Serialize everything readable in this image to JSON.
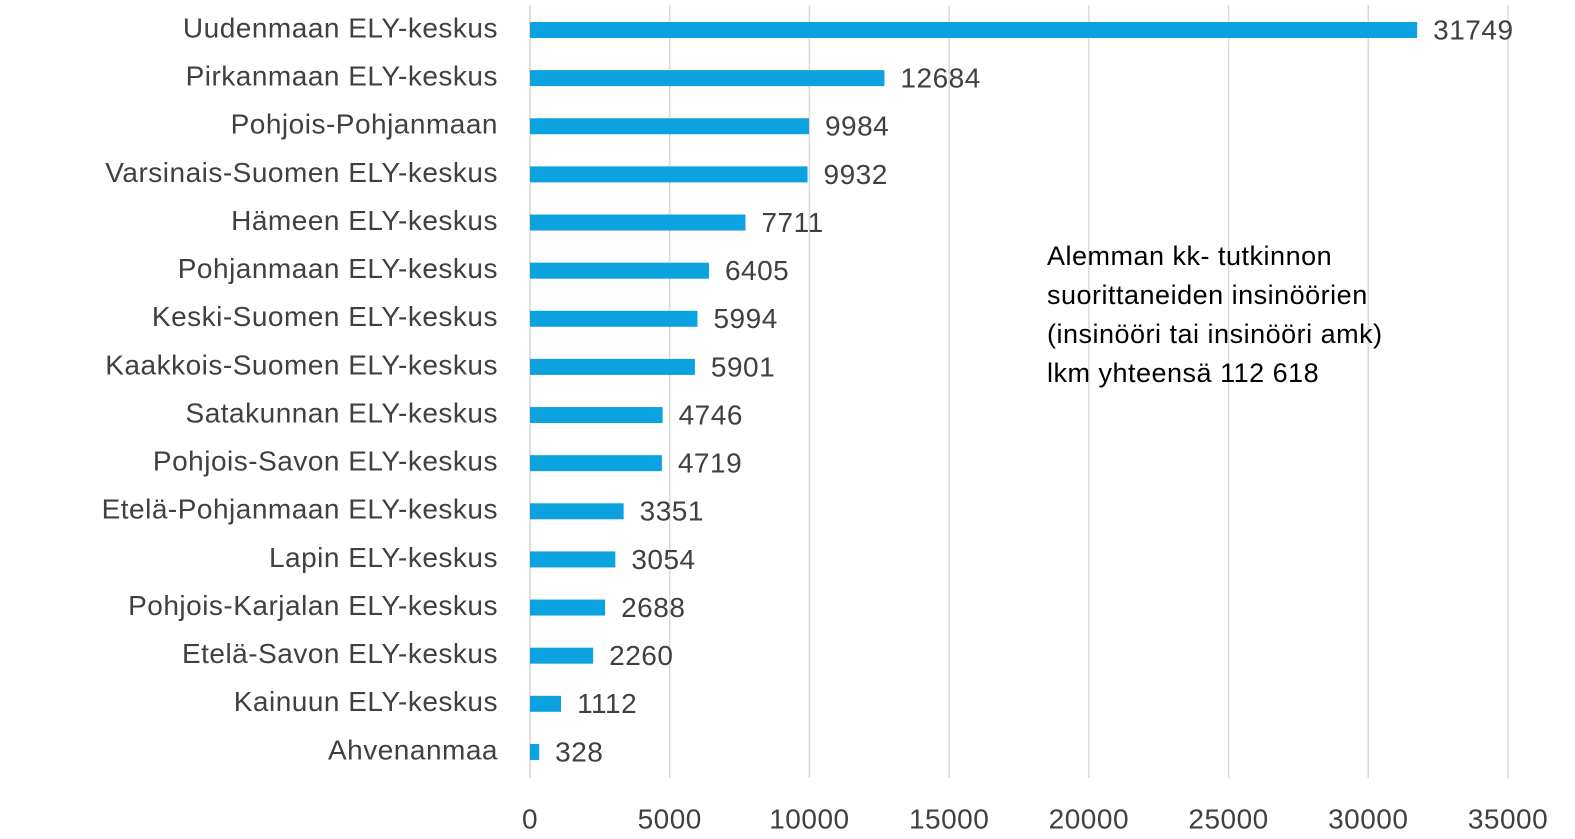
{
  "chart_data": {
    "type": "bar",
    "orientation": "horizontal",
    "categories": [
      "Uudenmaan ELY-keskus",
      "Pirkanmaan ELY-keskus",
      "Pohjois-Pohjanmaan",
      "Varsinais-Suomen ELY-keskus",
      "Hämeen ELY-keskus",
      "Pohjanmaan ELY-keskus",
      "Keski-Suomen ELY-keskus",
      "Kaakkois-Suomen ELY-keskus",
      "Satakunnan ELY-keskus",
      "Pohjois-Savon ELY-keskus",
      "Etelä-Pohjanmaan ELY-keskus",
      "Lapin ELY-keskus",
      "Pohjois-Karjalan ELY-keskus",
      "Etelä-Savon ELY-keskus",
      "Kainuun ELY-keskus",
      "Ahvenanmaa"
    ],
    "values": [
      31749,
      12684,
      9984,
      9932,
      7711,
      6405,
      5994,
      5901,
      4746,
      4719,
      3351,
      3054,
      2688,
      2260,
      1112,
      328
    ],
    "color": "#0ca2e0",
    "xlim": [
      0,
      35000
    ],
    "xticks": [
      0,
      5000,
      10000,
      15000,
      20000,
      25000,
      30000,
      35000
    ],
    "grid": true,
    "annotation": [
      "Alemman kk- tutkinnon",
      "suorittaneiden insinöörien",
      "(insinööri tai insinööri amk)",
      "lkm yhteensä 112 618"
    ]
  }
}
